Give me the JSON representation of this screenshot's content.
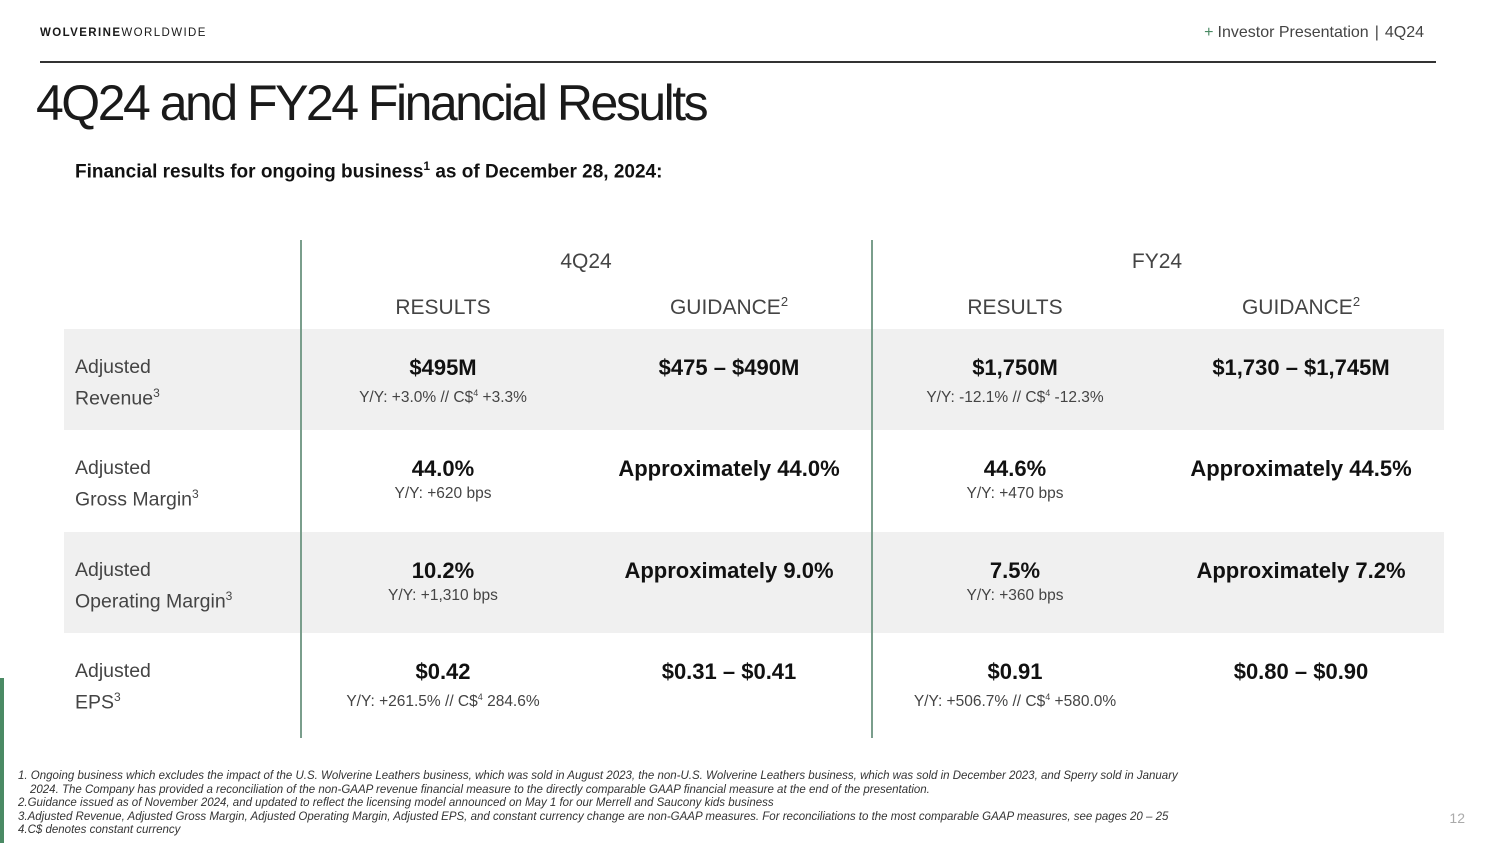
{
  "header": {
    "logo_bold": "WOLVERINE",
    "logo_light": "WORLDWIDE",
    "plus": "+",
    "deck": "Investor Presentation",
    "divider": "|",
    "period": "4Q24"
  },
  "title": "4Q24 and FY24 Financial Results",
  "subtitle": {
    "before": "Financial results for ongoing business",
    "note": "1",
    "after": " as of December 28, 2024:"
  },
  "table": {
    "periods": [
      "4Q24",
      "FY24"
    ],
    "columns": [
      {
        "label": "RESULTS",
        "note": ""
      },
      {
        "label": "GUIDANCE",
        "note": "2"
      },
      {
        "label": "RESULTS",
        "note": ""
      },
      {
        "label": "GUIDANCE",
        "note": "2"
      }
    ],
    "rows": [
      {
        "label1": "Adjusted",
        "label2": "Revenue",
        "note": "3",
        "cells": [
          {
            "main": "$495M",
            "sub_a": "Y/Y: +3.0% // C$",
            "sub_note": "4",
            "sub_b": " +3.3%"
          },
          {
            "main": "$475 – $490M",
            "sub_a": "",
            "sub_note": "",
            "sub_b": ""
          },
          {
            "main": "$1,750M",
            "sub_a": "Y/Y: -12.1% // C$",
            "sub_note": "4",
            "sub_b": " -12.3%"
          },
          {
            "main": "$1,730 – $1,745M",
            "sub_a": "",
            "sub_note": "",
            "sub_b": ""
          }
        ]
      },
      {
        "label1": "Adjusted",
        "label2": "Gross Margin",
        "note": "3",
        "cells": [
          {
            "main": "44.0%",
            "sub_a": "Y/Y: +620 bps",
            "sub_note": "",
            "sub_b": ""
          },
          {
            "main": "Approximately 44.0%",
            "sub_a": "",
            "sub_note": "",
            "sub_b": ""
          },
          {
            "main": "44.6%",
            "sub_a": "Y/Y: +470 bps",
            "sub_note": "",
            "sub_b": ""
          },
          {
            "main": "Approximately 44.5%",
            "sub_a": "",
            "sub_note": "",
            "sub_b": ""
          }
        ]
      },
      {
        "label1": "Adjusted",
        "label2": "Operating Margin",
        "note": "3",
        "cells": [
          {
            "main": "10.2%",
            "sub_a": "Y/Y: +1,310 bps",
            "sub_note": "",
            "sub_b": ""
          },
          {
            "main": "Approximately 9.0%",
            "sub_a": "",
            "sub_note": "",
            "sub_b": ""
          },
          {
            "main": "7.5%",
            "sub_a": "Y/Y: +360 bps",
            "sub_note": "",
            "sub_b": ""
          },
          {
            "main": "Approximately 7.2%",
            "sub_a": "",
            "sub_note": "",
            "sub_b": ""
          }
        ]
      },
      {
        "label1": "Adjusted",
        "label2": "EPS",
        "note": "3",
        "cells": [
          {
            "main": "$0.42",
            "sub_a": "Y/Y: +261.5% // C$",
            "sub_note": "4",
            "sub_b": " 284.6%"
          },
          {
            "main": "$0.31 – $0.41",
            "sub_a": "",
            "sub_note": "",
            "sub_b": ""
          },
          {
            "main": "$0.91",
            "sub_a": "Y/Y: +506.7% // C$",
            "sub_note": "4",
            "sub_b": " +580.0%"
          },
          {
            "main": "$0.80 – $0.90",
            "sub_a": "",
            "sub_note": "",
            "sub_b": ""
          }
        ]
      }
    ]
  },
  "footnotes": [
    "1. Ongoing business which excludes the impact of the U.S. Wolverine Leathers business, which was sold in August 2023, the non-U.S. Wolverine Leathers business, which was sold in December 2023, and Sperry sold in January",
    "2024. The Company has provided a reconciliation of the non-GAAP revenue financial measure to the directly comparable GAAP financial measure at the end of the presentation.",
    "2.Guidance issued as of November 2024, and updated to reflect the licensing model announced on May 1 for our Merrell and Saucony kids business",
    "3.Adjusted Revenue, Adjusted Gross Margin, Adjusted Operating Margin, Adjusted EPS, and constant currency change are non-GAAP measures. For reconciliations to the most comparable GAAP measures, see pages 20 – 25",
    "4.C$ denotes constant currency"
  ],
  "page_number": "12",
  "colors": {
    "accent_green": "#4a8a64",
    "divider_line": "#7a9e8c",
    "row_shade": "#f0f0f0"
  }
}
